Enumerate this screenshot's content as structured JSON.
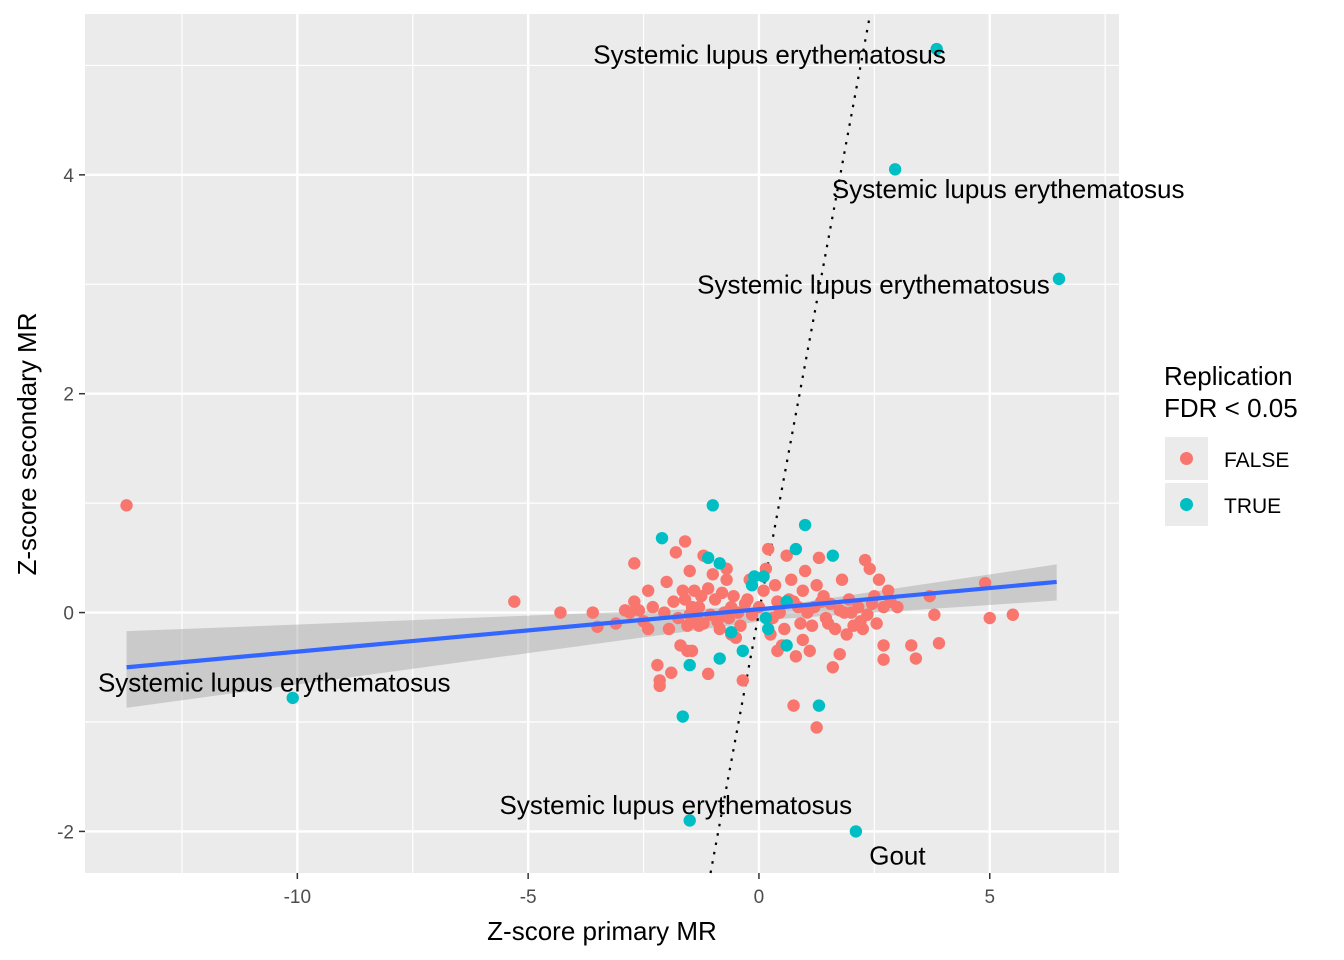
{
  "chart_data": {
    "type": "scatter",
    "xlabel": "Z-score primary MR",
    "ylabel": "Z-score secondary MR",
    "xlim": [
      -14.6,
      7.8
    ],
    "ylim": [
      -2.38,
      5.47
    ],
    "x_ticks": [
      -10,
      -5,
      0,
      5
    ],
    "y_ticks": [
      -2,
      0,
      2,
      4
    ],
    "grid": true,
    "legend": {
      "title_lines": [
        "Replication",
        "FDR < 0.05"
      ],
      "placement": "right",
      "entries": [
        {
          "label": "FALSE",
          "color": "#F8766D"
        },
        {
          "label": "TRUE",
          "color": "#00BFC4"
        }
      ]
    },
    "colors": {
      "false": "#F8766D",
      "true": "#00BFC4",
      "fit_line": "#3366FF",
      "confidence_band": "#999999",
      "panel_bg": "#EBEBEB",
      "grid": "#FFFFFF"
    },
    "reference_line": {
      "style": "dotted",
      "intercept": 0,
      "slope": 2.27
    },
    "fit_line": {
      "x_start": -13.7,
      "y_start": -0.5,
      "x_end": 6.45,
      "y_end": 0.28,
      "ci_lower_start": -0.87,
      "ci_upper_start": -0.17,
      "ci_lower_mid": -0.06,
      "ci_upper_mid": 0.06,
      "x_mid": 0.4,
      "ci_lower_end": 0.11,
      "ci_upper_end": 0.44
    },
    "series": [
      {
        "name": "FALSE",
        "points": [
          [
            -13.7,
            0.98
          ],
          [
            -5.3,
            0.1
          ],
          [
            -4.3,
            0.0
          ],
          [
            -3.6,
            0.0
          ],
          [
            -3.5,
            -0.13
          ],
          [
            -3.1,
            -0.1
          ],
          [
            -2.9,
            0.02
          ],
          [
            -2.8,
            0.0
          ],
          [
            -2.7,
            0.45
          ],
          [
            -2.7,
            0.1
          ],
          [
            -2.5,
            -0.08
          ],
          [
            -2.4,
            0.2
          ],
          [
            -2.4,
            -0.15
          ],
          [
            -2.2,
            -0.48
          ],
          [
            -2.15,
            -0.62
          ],
          [
            -2.15,
            -0.67
          ],
          [
            -2.0,
            0.28
          ],
          [
            -1.9,
            -0.55
          ],
          [
            -1.8,
            0.55
          ],
          [
            -1.7,
            -0.3
          ],
          [
            -1.6,
            0.65
          ],
          [
            -1.5,
            0.38
          ],
          [
            -1.45,
            -0.35
          ],
          [
            -1.4,
            0.2
          ],
          [
            -1.3,
            -0.12
          ],
          [
            -1.2,
            0.52
          ],
          [
            -1.1,
            -0.56
          ],
          [
            -1.0,
            0.35
          ],
          [
            -0.9,
            -0.08
          ],
          [
            -0.8,
            0.18
          ],
          [
            -0.7,
            0.3
          ],
          [
            -0.6,
            0.05
          ],
          [
            -0.5,
            -0.23
          ],
          [
            -0.35,
            -0.62
          ],
          [
            -0.3,
            0.08
          ],
          [
            0.2,
            0.58
          ],
          [
            0.4,
            0.1
          ],
          [
            0.5,
            -0.3
          ],
          [
            0.6,
            0.52
          ],
          [
            0.7,
            0.3
          ],
          [
            0.75,
            -0.85
          ],
          [
            0.8,
            -0.4
          ],
          [
            1.0,
            0.38
          ],
          [
            1.1,
            -0.35
          ],
          [
            1.2,
            0.05
          ],
          [
            1.25,
            -1.05
          ],
          [
            1.3,
            0.5
          ],
          [
            1.4,
            0.15
          ],
          [
            1.5,
            -0.1
          ],
          [
            1.6,
            -0.5
          ],
          [
            1.75,
            -0.38
          ],
          [
            1.8,
            0.3
          ],
          [
            2.0,
            0.0
          ],
          [
            2.2,
            -0.08
          ],
          [
            2.3,
            0.48
          ],
          [
            2.4,
            0.4
          ],
          [
            2.5,
            0.15
          ],
          [
            2.6,
            0.3
          ],
          [
            2.7,
            0.05
          ],
          [
            2.7,
            -0.3
          ],
          [
            2.7,
            -0.43
          ],
          [
            2.8,
            0.2
          ],
          [
            2.85,
            0.1
          ],
          [
            3.0,
            0.05
          ],
          [
            3.3,
            -0.3
          ],
          [
            3.4,
            -0.42
          ],
          [
            3.7,
            0.15
          ],
          [
            3.8,
            -0.02
          ],
          [
            3.9,
            -0.28
          ],
          [
            4.9,
            0.27
          ],
          [
            5.0,
            -0.05
          ],
          [
            5.5,
            -0.02
          ],
          [
            -1.6,
            0.12
          ],
          [
            -1.5,
            -0.02
          ],
          [
            -1.3,
            0.05
          ],
          [
            -1.2,
            -0.1
          ],
          [
            -1.1,
            0.22
          ],
          [
            -0.95,
            0.12
          ],
          [
            -0.85,
            -0.15
          ],
          [
            -0.75,
            0.0
          ],
          [
            -0.65,
            -0.05
          ],
          [
            -0.55,
            0.15
          ],
          [
            -0.45,
            0.0
          ],
          [
            -0.4,
            -0.12
          ],
          [
            -0.25,
            0.12
          ],
          [
            -0.15,
            -0.02
          ],
          [
            0.0,
            0.05
          ],
          [
            0.1,
            0.2
          ],
          [
            0.3,
            -0.05
          ],
          [
            0.35,
            0.25
          ],
          [
            0.45,
            0.0
          ],
          [
            0.55,
            -0.15
          ],
          [
            0.65,
            0.12
          ],
          [
            0.85,
            0.05
          ],
          [
            0.9,
            -0.1
          ],
          [
            0.95,
            0.2
          ],
          [
            1.05,
            0.0
          ],
          [
            1.15,
            -0.12
          ],
          [
            1.35,
            0.1
          ],
          [
            1.45,
            -0.05
          ],
          [
            1.55,
            0.08
          ],
          [
            1.65,
            -0.15
          ],
          [
            1.85,
            0.0
          ],
          [
            1.95,
            0.12
          ],
          [
            2.05,
            -0.12
          ],
          [
            2.15,
            0.05
          ],
          [
            2.35,
            -0.02
          ],
          [
            2.45,
            0.08
          ],
          [
            2.55,
            -0.1
          ],
          [
            -2.05,
            0.0
          ],
          [
            -1.85,
            0.1
          ],
          [
            -1.75,
            -0.05
          ],
          [
            -1.65,
            0.2
          ],
          [
            -1.55,
            -0.12
          ],
          [
            -1.45,
            0.05
          ],
          [
            -1.35,
            -0.05
          ],
          [
            -1.25,
            0.15
          ],
          [
            -1.05,
            -0.02
          ],
          [
            -0.2,
            0.3
          ],
          [
            0.25,
            -0.2
          ],
          [
            0.75,
            0.1
          ],
          [
            1.25,
            0.25
          ],
          [
            1.75,
            0.02
          ],
          [
            2.25,
            -0.15
          ],
          [
            -2.3,
            0.05
          ],
          [
            -2.6,
            0.02
          ],
          [
            -1.95,
            -0.15
          ],
          [
            -0.7,
            0.4
          ],
          [
            0.15,
            0.4
          ],
          [
            0.95,
            -0.25
          ],
          [
            1.9,
            -0.2
          ],
          [
            -1.55,
            -0.35
          ],
          [
            -0.6,
            -0.2
          ],
          [
            0.4,
            -0.35
          ]
        ]
      },
      {
        "name": "TRUE",
        "points": [
          [
            3.85,
            5.15
          ],
          [
            2.95,
            4.05
          ],
          [
            6.5,
            3.05
          ],
          [
            -10.1,
            -0.78
          ],
          [
            -1.5,
            -1.9
          ],
          [
            2.1,
            -2.0
          ],
          [
            -1.0,
            0.98
          ],
          [
            -2.1,
            0.68
          ],
          [
            1.0,
            0.8
          ],
          [
            0.8,
            0.58
          ],
          [
            1.6,
            0.52
          ],
          [
            -1.1,
            0.5
          ],
          [
            -0.85,
            0.45
          ],
          [
            -0.1,
            0.33
          ],
          [
            0.1,
            0.33
          ],
          [
            -0.15,
            0.25
          ],
          [
            -1.65,
            -0.95
          ],
          [
            1.3,
            -0.85
          ],
          [
            -1.5,
            -0.48
          ],
          [
            -0.85,
            -0.42
          ],
          [
            -0.35,
            -0.35
          ],
          [
            0.6,
            -0.3
          ],
          [
            -0.6,
            -0.18
          ],
          [
            0.2,
            -0.15
          ],
          [
            0.15,
            -0.05
          ],
          [
            0.6,
            0.1
          ]
        ]
      }
    ],
    "annotations": [
      {
        "text": "Systemic lupus erythematosus",
        "x": 3.85,
        "y": 5.15,
        "anchor": "end",
        "dx": 0.2,
        "dy": -0.05
      },
      {
        "text": "Systemic lupus erythematosus",
        "x": 2.95,
        "y": 4.05,
        "anchor": "middle",
        "dx": 2.45,
        "dy": -0.18
      },
      {
        "text": "Systemic lupus erythematosus",
        "x": 6.5,
        "y": 3.05,
        "anchor": "end",
        "dx": -0.2,
        "dy": -0.05
      },
      {
        "text": "Systemic lupus erythematosus",
        "x": -10.1,
        "y": -0.78,
        "anchor": "middle",
        "dx": -0.4,
        "dy": 0.14
      },
      {
        "text": "Systemic lupus erythematosus",
        "x": -1.5,
        "y": -1.9,
        "anchor": "middle",
        "dx": -0.3,
        "dy": 0.14
      },
      {
        "text": "Gout",
        "x": 2.1,
        "y": -2.0,
        "anchor": "middle",
        "dx": 0.9,
        "dy": -0.22
      }
    ]
  }
}
